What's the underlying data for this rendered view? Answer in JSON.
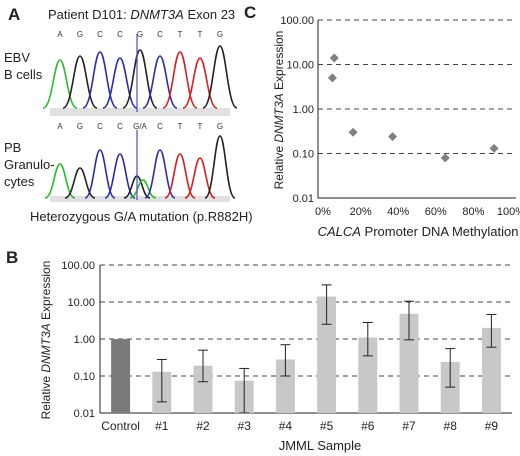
{
  "panels": {
    "a": {
      "letter": "A",
      "title_prefix": "Patient D101: ",
      "title_gene": "DNMT3A",
      "title_suffix": " Exon 23",
      "track1_label_line1": "EBV",
      "track1_label_line2": "B cells",
      "track1_bases": [
        "A",
        "G",
        "C",
        "C",
        "G",
        "C",
        "T",
        "T",
        "G"
      ],
      "track2_label_line1": "PB",
      "track2_label_line2": "Granulo-",
      "track2_label_line3": "cytes",
      "track2_bases": [
        "A",
        "G",
        "C",
        "C",
        "G/A",
        "C",
        "T",
        "T",
        "G"
      ],
      "caption": "Heterozygous G/A mutation (p.R882H)",
      "colors": {
        "A": "#2eb82e",
        "C": "#2c2ca8",
        "G": "#222222",
        "T": "#d42020",
        "marker": "#4a4ad0"
      }
    },
    "b": {
      "letter": "B"
    },
    "c": {
      "letter": "C"
    }
  },
  "chart_data": [
    {
      "id": "C",
      "type": "scatter",
      "xlabel_gene": "CALCA",
      "xlabel_rest": " Promoter DNA Methylation",
      "ylabel_prefix": "Relative ",
      "ylabel_gene": "DNMT3A",
      "ylabel_suffix": " Expression",
      "xlim": [
        0,
        100
      ],
      "x_ticks": [
        "0%",
        "20%",
        "40%",
        "60%",
        "80%",
        "100%"
      ],
      "y_scale": "log",
      "ylim": [
        0.01,
        100
      ],
      "y_ticks": [
        "100.00",
        "10.00",
        "1.00",
        "0.10",
        "0.01"
      ],
      "grid": "dashed horizontal",
      "marker": "diamond",
      "marker_color": "#808080",
      "points": [
        {
          "x": 6,
          "y": 14
        },
        {
          "x": 5,
          "y": 5
        },
        {
          "x": 16,
          "y": 0.3
        },
        {
          "x": 37,
          "y": 0.24
        },
        {
          "x": 65,
          "y": 0.08
        },
        {
          "x": 91,
          "y": 0.13
        }
      ]
    },
    {
      "id": "B",
      "type": "bar",
      "xlabel": "JMML Sample",
      "ylabel_prefix": "Relative ",
      "ylabel_gene": "DNMT3A",
      "ylabel_suffix": " Expression",
      "y_scale": "log",
      "ylim": [
        0.01,
        100
      ],
      "y_ticks": [
        "100.00",
        "10.00",
        "1.00",
        "0.10",
        "0.01"
      ],
      "grid": "dashed horizontal",
      "categories": [
        "Control",
        "#1",
        "#2",
        "#3",
        "#4",
        "#5",
        "#6",
        "#7",
        "#8",
        "#9"
      ],
      "values": [
        1.0,
        0.13,
        0.19,
        0.075,
        0.28,
        14,
        1.1,
        4.8,
        0.24,
        2.0
      ],
      "error_low": [
        null,
        0.02,
        0.07,
        0.01,
        0.1,
        2.5,
        0.35,
        0.95,
        0.05,
        0.6
      ],
      "error_high": [
        null,
        0.28,
        0.5,
        0.16,
        0.7,
        29,
        2.8,
        10.5,
        0.55,
        4.6
      ],
      "bar_colors": [
        "#7a7a7a",
        "#c8c8c8",
        "#c8c8c8",
        "#c8c8c8",
        "#c8c8c8",
        "#c8c8c8",
        "#c8c8c8",
        "#c8c8c8",
        "#c8c8c8",
        "#c8c8c8"
      ]
    }
  ]
}
